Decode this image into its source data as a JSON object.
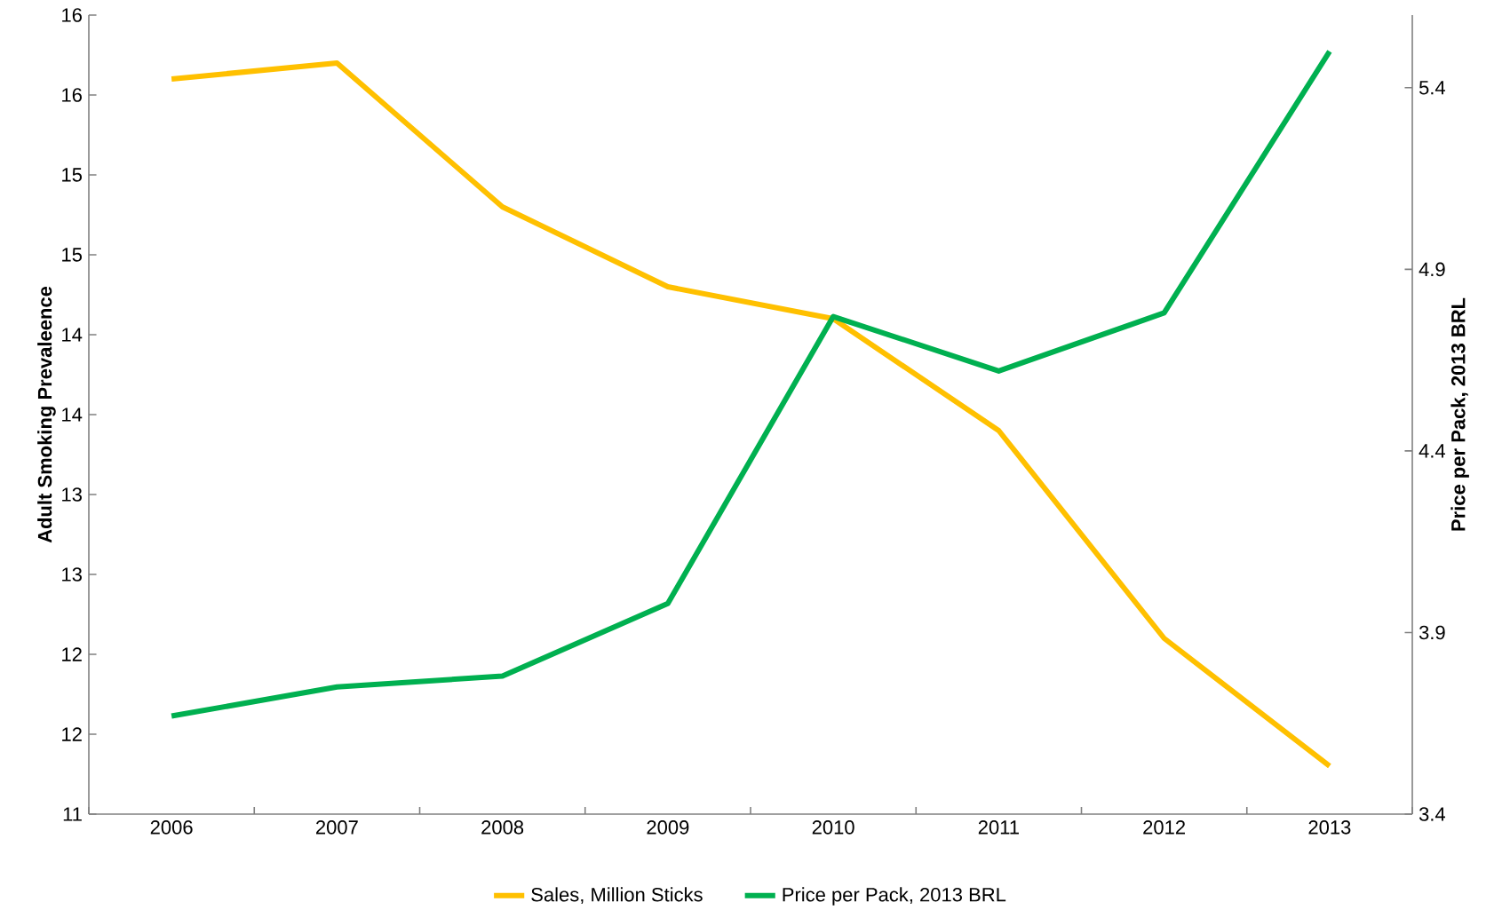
{
  "chart_data": {
    "type": "line",
    "categories": [
      "2006",
      "2007",
      "2008",
      "2009",
      "2010",
      "2011",
      "2012",
      "2013"
    ],
    "series": [
      {
        "name": "Sales, Million Sticks",
        "color": "#ffc000",
        "values": [
          15.6,
          15.7,
          14.8,
          14.3,
          14.1,
          13.4,
          12.1,
          11.3
        ]
      },
      {
        "name": "Price per Pack, 2013 BRL",
        "color": "#00b050",
        "axis": "y2",
        "values": [
          3.67,
          3.75,
          3.78,
          3.98,
          4.77,
          4.62,
          4.78,
          5.5
        ]
      }
    ],
    "ylabel": "Adult Smoking Prevaleence",
    "y2label": "Price per Pack, 2013 BRL",
    "ylim": [
      11,
      16
    ],
    "yticks": [
      {
        "value": 11,
        "label": "11"
      },
      {
        "value": 11.5,
        "label": "12"
      },
      {
        "value": 12,
        "label": "12"
      },
      {
        "value": 12.5,
        "label": "13"
      },
      {
        "value": 13,
        "label": "13"
      },
      {
        "value": 13.5,
        "label": "14"
      },
      {
        "value": 14,
        "label": "14"
      },
      {
        "value": 14.5,
        "label": "15"
      },
      {
        "value": 15,
        "label": "15"
      },
      {
        "value": 15.5,
        "label": "16"
      },
      {
        "value": 16,
        "label": "16"
      }
    ],
    "y2lim": [
      3.4,
      5.6
    ],
    "y2ticks": [
      3.4,
      3.9,
      4.4,
      4.9,
      5.4
    ],
    "legend": "bottom",
    "grid": false
  }
}
